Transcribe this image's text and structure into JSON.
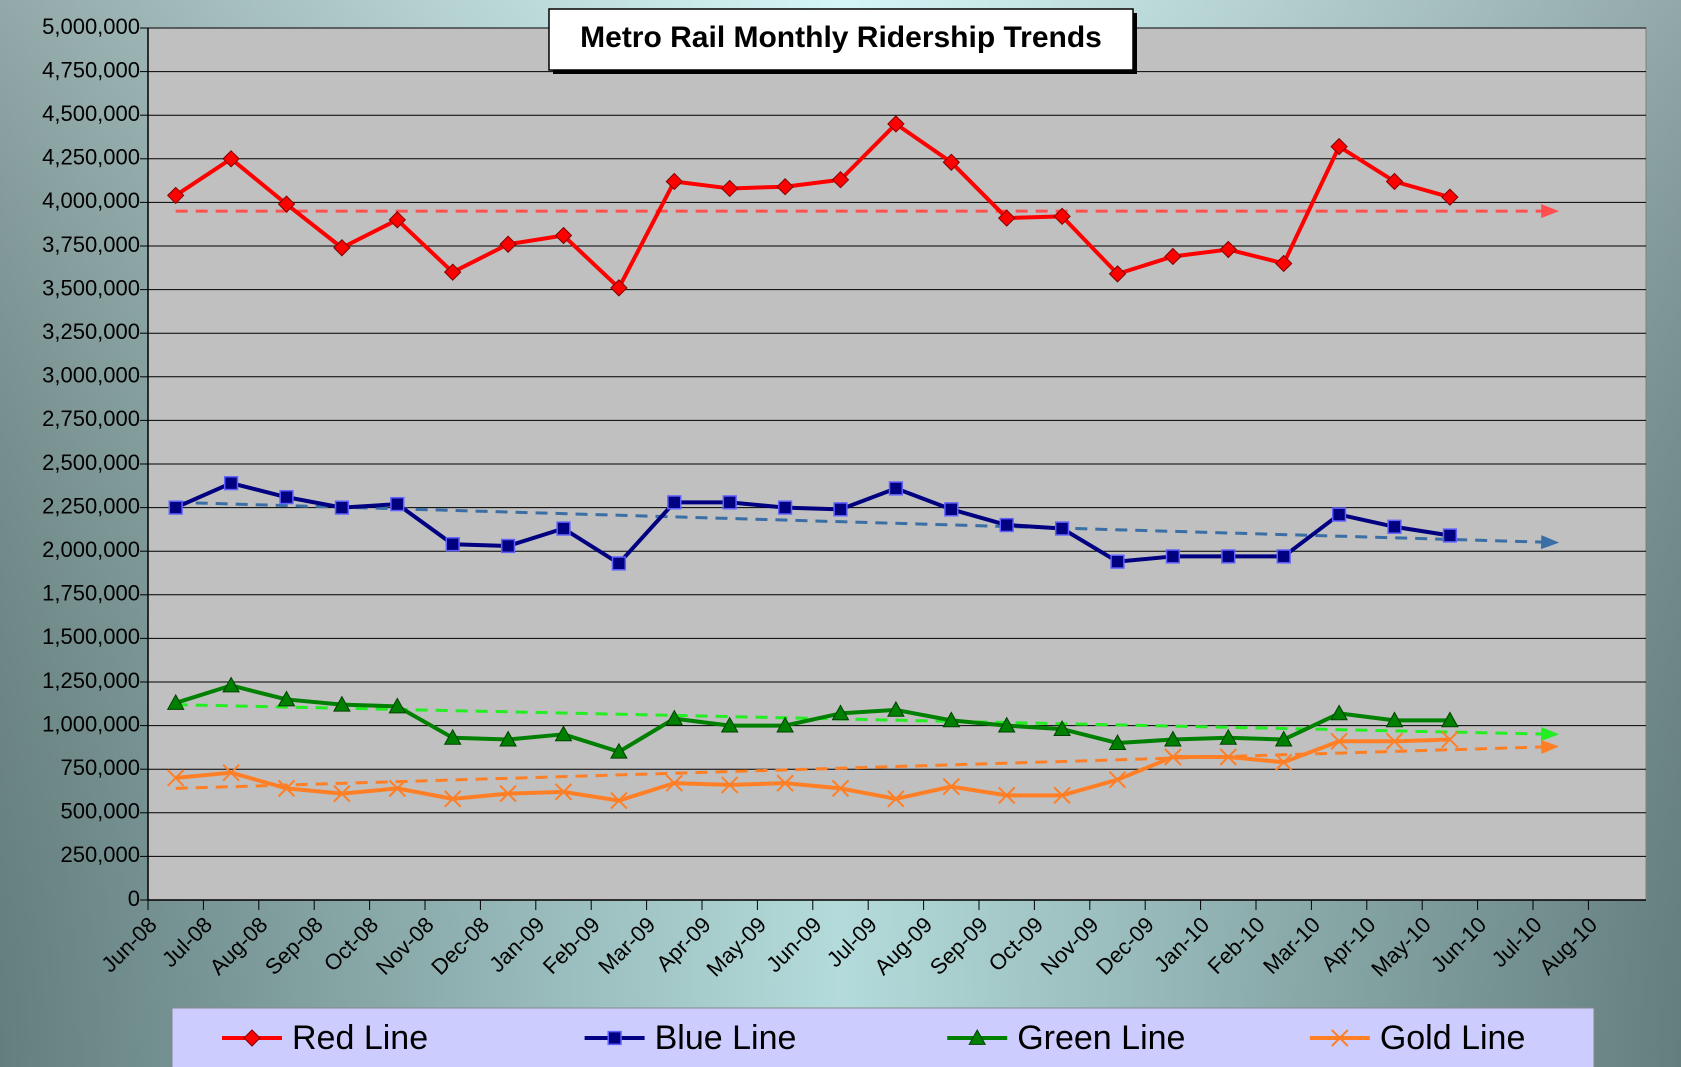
{
  "chart_data": {
    "type": "line",
    "title": "Metro Rail Monthly Ridership Trends",
    "categories": [
      "Jun-08",
      "Jul-08",
      "Aug-08",
      "Sep-08",
      "Oct-08",
      "Nov-08",
      "Dec-08",
      "Jan-09",
      "Feb-09",
      "Mar-09",
      "Apr-09",
      "May-09",
      "Jun-09",
      "Jul-09",
      "Aug-09",
      "Sep-09",
      "Oct-09",
      "Nov-09",
      "Dec-09",
      "Jan-10",
      "Feb-10",
      "Mar-10",
      "Apr-10",
      "May-10",
      "Jun-10",
      "Jul-10",
      "Aug-10"
    ],
    "series": [
      {
        "name": "Red Line",
        "color": "#ff0000",
        "marker": "diamond",
        "trend_color": "#ff5050",
        "trend": [
          3950000,
          3950000
        ],
        "values": [
          4040000,
          4250000,
          3990000,
          3740000,
          3900000,
          3600000,
          3760000,
          3810000,
          3510000,
          4120000,
          4080000,
          4090000,
          4130000,
          4450000,
          4230000,
          3910000,
          3920000,
          3590000,
          3690000,
          3730000,
          3650000,
          4320000,
          4120000,
          4030000,
          null,
          null,
          null
        ]
      },
      {
        "name": "Blue Line",
        "color": "#000080",
        "marker": "square",
        "trend_color": "#3a6ea5",
        "trend": [
          2280000,
          2050000
        ],
        "values": [
          2250000,
          2390000,
          2310000,
          2250000,
          2270000,
          2040000,
          2030000,
          2130000,
          1930000,
          2280000,
          2280000,
          2250000,
          2240000,
          2360000,
          2240000,
          2150000,
          2130000,
          1940000,
          1970000,
          1970000,
          1970000,
          2210000,
          2140000,
          2090000,
          null,
          null,
          null
        ]
      },
      {
        "name": "Green Line",
        "color": "#008000",
        "marker": "triangle",
        "trend_color": "#22ee22",
        "trend": [
          1120000,
          950000
        ],
        "values": [
          1130000,
          1230000,
          1150000,
          1120000,
          1110000,
          930000,
          920000,
          950000,
          850000,
          1040000,
          1000000,
          1000000,
          1070000,
          1090000,
          1030000,
          1000000,
          980000,
          900000,
          920000,
          930000,
          920000,
          1070000,
          1030000,
          1030000,
          null,
          null,
          null
        ]
      },
      {
        "name": "Gold Line",
        "color": "#ff7f27",
        "marker": "x",
        "trend_color": "#ff7f27",
        "trend": [
          640000,
          880000
        ],
        "values": [
          700000,
          730000,
          640000,
          610000,
          640000,
          580000,
          610000,
          620000,
          570000,
          670000,
          660000,
          670000,
          640000,
          580000,
          650000,
          600000,
          600000,
          690000,
          820000,
          820000,
          790000,
          910000,
          910000,
          920000,
          null,
          null,
          null
        ]
      }
    ],
    "ylim": [
      0,
      5000000
    ],
    "yticks": [
      0,
      {
        "value": 250000,
        "label": "250,000"
      },
      {
        "value": 500000,
        "label": "500,000"
      },
      {
        "value": 750000,
        "label": "750,000"
      },
      {
        "value": 1000000,
        "label": "1,000,000"
      },
      {
        "value": 1250000,
        "label": "1,250,000"
      },
      {
        "value": 1500000,
        "label": "1,500,000"
      },
      {
        "value": 1750000,
        "label": "1,750,000"
      },
      {
        "value": 2000000,
        "label": "2,000,000"
      },
      {
        "value": 2250000,
        "label": "2,250,000"
      },
      {
        "value": 2500000,
        "label": "2,500,000"
      },
      {
        "value": 2750000,
        "label": "2,750,000"
      },
      {
        "value": 3000000,
        "label": "3,000,000"
      },
      {
        "value": 3250000,
        "label": "3,250,000"
      },
      {
        "value": 3500000,
        "label": "3,500,000"
      },
      {
        "value": 3750000,
        "label": "3,750,000"
      },
      {
        "value": 4000000,
        "label": "4,000,000"
      },
      {
        "value": 4250000,
        "label": "4,250,000"
      },
      {
        "value": 4500000,
        "label": "4,500,000"
      },
      {
        "value": 4750000,
        "label": "4,750,000"
      },
      {
        "value": 5000000,
        "label": "5,000,000"
      }
    ],
    "grid": true,
    "legend": "bottom"
  }
}
